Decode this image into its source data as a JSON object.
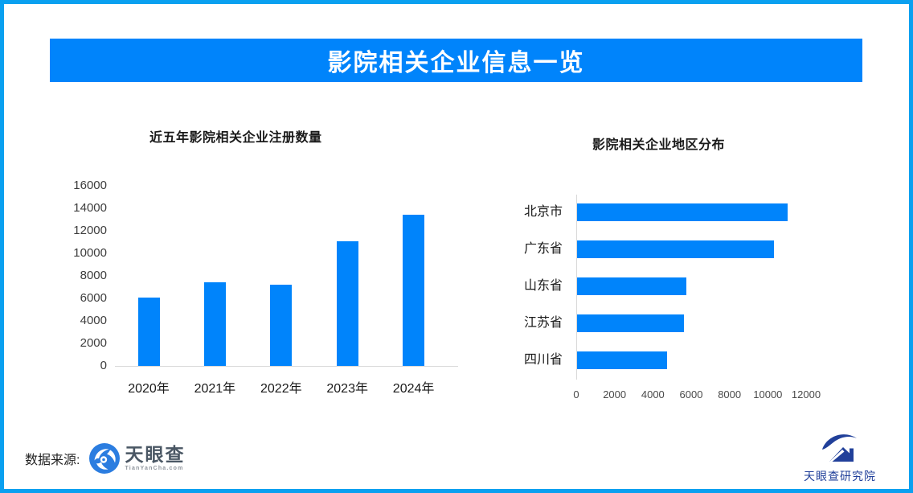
{
  "header": {
    "title": "影院相关企业信息一览"
  },
  "chart_data": [
    {
      "type": "bar",
      "orientation": "vertical",
      "title": "近五年影院相关企业注册数量",
      "categories": [
        "2020年",
        "2021年",
        "2022年",
        "2023年",
        "2024年"
      ],
      "values": [
        6100,
        7400,
        7200,
        11100,
        13400
      ],
      "xlabel": "",
      "ylabel": "",
      "ylim": [
        0,
        16000
      ],
      "yticks": [
        0,
        2000,
        4000,
        6000,
        8000,
        10000,
        12000,
        14000,
        16000
      ],
      "grid": false,
      "bar_color": "#0084fb"
    },
    {
      "type": "bar",
      "orientation": "horizontal",
      "title": "影院相关企业地区分布",
      "categories": [
        "北京市",
        "广东省",
        "山东省",
        "江苏省",
        "四川省"
      ],
      "values": [
        11000,
        10300,
        5700,
        5600,
        4700
      ],
      "xlabel": "",
      "ylabel": "",
      "xlim": [
        0,
        12000
      ],
      "xticks": [
        0,
        2000,
        4000,
        6000,
        8000,
        10000,
        12000
      ],
      "grid": false,
      "bar_color": "#0084fb"
    }
  ],
  "footer": {
    "source_label": "数据来源:",
    "tyc_name": "天眼查",
    "tyc_domain": "TianYanCha.com",
    "research_label": "天眼查研究院"
  },
  "colors": {
    "accent_blue": "#0084fb",
    "frame_border": "#0aa0f0",
    "banner_bg": "#0084fb",
    "axis_line": "#d9d9d9",
    "tick_text": "#3d3d3d",
    "tyc_logo_blue": "#2b7de0",
    "research_navy": "#21409a"
  }
}
